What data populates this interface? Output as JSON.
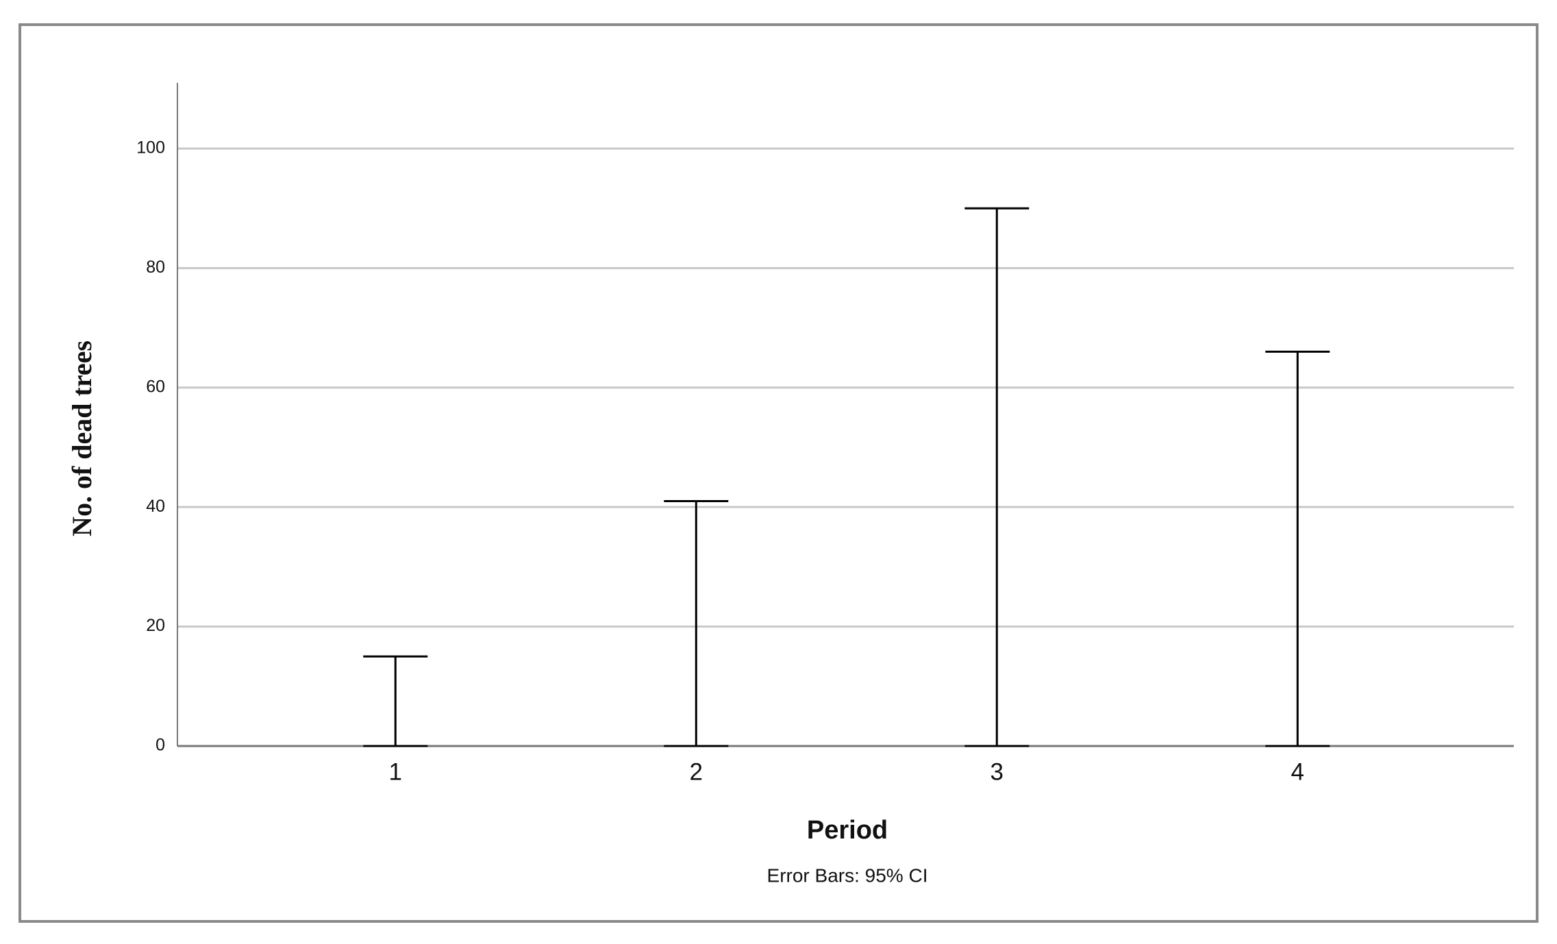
{
  "chart_data": {
    "type": "errorbar",
    "x_label": "Period",
    "y_label": "No. of dead trees",
    "note": "Error Bars: 95% CI",
    "categories": [
      "1",
      "2",
      "3",
      "4"
    ],
    "lower": [
      0,
      0,
      0,
      0
    ],
    "upper": [
      15,
      41,
      90,
      66
    ],
    "color": "#000000",
    "ylim": [
      0,
      111
    ],
    "yticks": [
      0,
      20,
      40,
      60,
      80,
      100
    ],
    "grid": true
  }
}
